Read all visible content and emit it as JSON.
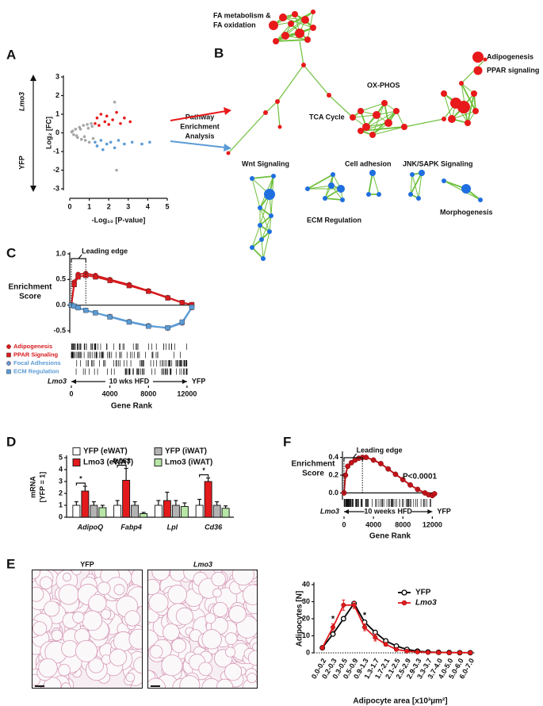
{
  "panels": {
    "letters": [
      "A",
      "B",
      "C",
      "D",
      "E",
      "F"
    ]
  },
  "pathway": {
    "lines": [
      "Pathway",
      "Enrichment",
      "Analysis"
    ]
  },
  "network": {
    "labels": [
      "FA metabolism &",
      "FA oxidation",
      "OX-PHOS",
      "TCA Cycle",
      "Wnt Signaling",
      "Cell adhesion",
      "JNK/SAPK Signaling",
      "ECM Regulation",
      "Morphogenesis"
    ],
    "legend": [
      "Adipogenesis",
      "PPAR signaling"
    ]
  },
  "images": {
    "titles": [
      "YFP",
      "Lmo3"
    ]
  },
  "chart_data": [
    {
      "type": "scatter",
      "x_label": "-Log₁₀ [P-value]",
      "y_label": "Log₂ [FC]",
      "side_labels": [
        "Lmo3",
        "YFP"
      ],
      "xlim": [
        0,
        5
      ],
      "ylim": [
        -3,
        3
      ],
      "xticks": [
        0,
        1,
        2,
        3,
        4,
        5
      ],
      "yticks": [
        -3,
        -2,
        -1,
        0,
        1,
        2,
        3
      ],
      "series": [
        {
          "color": "#a6a6a6",
          "x": [
            0.1,
            0.2,
            0.3,
            0.4,
            0.5,
            0.6,
            0.7,
            0.8,
            0.9,
            1.0,
            1.1,
            1.2,
            0.15,
            0.35,
            0.55,
            0.75,
            0.95,
            1.15,
            2.3,
            2.4
          ],
          "values": [
            0.05,
            -0.1,
            0.2,
            -0.25,
            0.3,
            -0.35,
            0.4,
            -0.4,
            0.45,
            -0.5,
            0.5,
            -0.3,
            0.1,
            -0.15,
            0.2,
            -0.2,
            0.25,
            0.35,
            1.65,
            -2.0
          ]
        },
        {
          "color": "#e8191b",
          "x": [
            1.3,
            1.4,
            1.5,
            1.6,
            1.8,
            1.9,
            2.0,
            2.2,
            2.4,
            2.6,
            2.8,
            3.1
          ],
          "values": [
            0.5,
            0.8,
            0.4,
            1.0,
            0.6,
            0.9,
            0.45,
            0.7,
            1.1,
            0.5,
            0.8,
            0.6
          ]
        },
        {
          "color": "#5b9bd5",
          "x": [
            1.3,
            1.4,
            1.6,
            1.7,
            1.9,
            2.1,
            2.3,
            2.5,
            2.8,
            3.2,
            3.7,
            4.1
          ],
          "values": [
            -0.5,
            -0.7,
            -0.4,
            -0.9,
            -0.6,
            -0.5,
            -0.8,
            -0.4,
            -0.6,
            -0.5,
            -0.6,
            -0.5
          ]
        }
      ]
    },
    {
      "type": "line",
      "y_label": [
        "Enrichment",
        "Score"
      ],
      "x_label": "Gene Rank",
      "annotation": "Leading edge",
      "rank_labels": [
        "Lmo3",
        "10 wks HFD",
        "YFP"
      ],
      "xlim": [
        0,
        12500
      ],
      "ylim": [
        -0.5,
        1.0
      ],
      "xticks": [
        0,
        4000,
        8000,
        12000
      ],
      "yticks": [
        -0.5,
        {
          "value": 0,
          "label": "0.0"
        },
        0.5,
        {
          "value": 1,
          "label": "1.0"
        }
      ],
      "x": [
        0,
        300,
        700,
        1500,
        2500,
        4000,
        6000,
        8000,
        10000,
        11500,
        12500
      ],
      "series": [
        {
          "name": "Adipogenesis",
          "color": "#d7191c",
          "marker": "circle",
          "values": [
            0,
            0.45,
            0.6,
            0.62,
            0.58,
            0.5,
            0.4,
            0.28,
            0.15,
            0.05,
            0.01
          ]
        },
        {
          "name": "PPAR Signaling",
          "color": "#d7191c",
          "marker": "square",
          "values": [
            0,
            0.4,
            0.55,
            0.58,
            0.55,
            0.48,
            0.38,
            0.27,
            0.14,
            0.05,
            0.01
          ]
        },
        {
          "name": "Focal Adhesions",
          "color": "#5b9bd5",
          "marker": "circle",
          "values": [
            0,
            -0.02,
            -0.05,
            -0.1,
            -0.15,
            -0.22,
            -0.32,
            -0.4,
            -0.45,
            -0.35,
            -0.05
          ]
        },
        {
          "name": "ECM Regulation",
          "color": "#5b9bd5",
          "marker": "square",
          "values": [
            0,
            -0.02,
            -0.05,
            -0.1,
            -0.15,
            -0.23,
            -0.33,
            -0.41,
            -0.44,
            -0.33,
            -0.04
          ]
        }
      ]
    },
    {
      "type": "bar",
      "y_label": [
        "mRNA",
        "[YFP = 1]"
      ],
      "ylim": [
        0,
        5
      ],
      "yticks": [
        0,
        1,
        2,
        3,
        4,
        5
      ],
      "categories": [
        "AdipoQ",
        "Fabp4",
        "Lpl",
        "Cd36"
      ],
      "series": [
        {
          "name": "YFP (eWAT)",
          "color": "#ffffff",
          "values": [
            1,
            1,
            1,
            1
          ],
          "errors": [
            0.3,
            0.4,
            0.4,
            0.5
          ]
        },
        {
          "name": "Lmo3 (eWAT)",
          "color": "#e31a1c",
          "values": [
            2.2,
            3.1,
            1.4,
            3.0
          ],
          "errors": [
            0.4,
            1.0,
            0.7,
            0.3
          ]
        },
        {
          "name": "YFP (iWAT)",
          "color": "#b3b3b3",
          "values": [
            1,
            1,
            1,
            1
          ],
          "errors": [
            0.3,
            0.3,
            0.4,
            0.3
          ]
        },
        {
          "name": "Lmo3 (iWAT)",
          "color": "#b8e6a6",
          "values": [
            0.8,
            0.3,
            0.9,
            0.75
          ],
          "errors": [
            0.2,
            0.1,
            0.3,
            0.2
          ]
        }
      ],
      "annotations": [
        {
          "text": "*",
          "category": "AdipoQ"
        },
        {
          "text": "0.063",
          "category": "Fabp4"
        },
        {
          "text": "*",
          "category": "Cd36"
        }
      ]
    },
    {
      "type": "line",
      "y_label": [
        "Enrichment",
        "Score"
      ],
      "x_label": "Gene Rank",
      "annotation": "Leading edge",
      "p_value": "P<0.0001",
      "rank_labels": [
        "Lmo3",
        "10 weeks HFD",
        "YFP"
      ],
      "xlim": [
        0,
        12500
      ],
      "ylim": [
        -0.05,
        0.45
      ],
      "xticks": [
        0,
        4000,
        8000,
        12000
      ],
      "yticks": [
        {
          "value": 0,
          "label": "0.0"
        },
        0.2,
        0.4
      ],
      "x": [
        0,
        200,
        500,
        1000,
        1500,
        2000,
        2500,
        3000,
        4000,
        5000,
        6000,
        7000,
        8000,
        9000,
        10000,
        11000,
        11500,
        12000,
        12300
      ],
      "series": [
        {
          "color": "#c0141a",
          "marker": "circle",
          "values": [
            0,
            0.2,
            0.3,
            0.34,
            0.37,
            0.39,
            0.4,
            0.4,
            0.37,
            0.33,
            0.27,
            0.21,
            0.15,
            0.09,
            0.04,
            0.0,
            -0.02,
            -0.03,
            -0.01
          ]
        }
      ]
    },
    {
      "type": "line",
      "y_label": "Adipocytes [N]",
      "x_label": "Adipocyte area [x10³µm²]",
      "ylim": [
        0,
        40
      ],
      "yticks": [
        0,
        10,
        20,
        30,
        40
      ],
      "categories": [
        "0.0-0.2",
        "0.2-0.3",
        "0.3-0.5",
        "0.5-0.9",
        "0.9-1.3",
        "1.3-1.7",
        "1.7-2.1",
        "2.1-2.5",
        "2.5-2.9",
        "2.9-3.3",
        "3.3-3.7",
        "3.7-4.0",
        "4.0-5.0",
        "5.0-6.0",
        "6.0-7.0"
      ],
      "series": [
        {
          "name": "YFP",
          "color": "#000000",
          "marker": "open-circle",
          "values": [
            3,
            11,
            20,
            29,
            18,
            12,
            7,
            4,
            2,
            1,
            0.5,
            0.3,
            0.2,
            0.1,
            0.1
          ],
          "errors": [
            0.3,
            1,
            1,
            1,
            1,
            1,
            0.5,
            0.5,
            0.3,
            0.2,
            0.1,
            0.1,
            0.1,
            0.1,
            0.1
          ]
        },
        {
          "name": "Lmo3",
          "color": "#e31a1c",
          "marker": "circle",
          "values": [
            3,
            15,
            28,
            28,
            15,
            9,
            5,
            2,
            1,
            0.5,
            0.3,
            0.2,
            0.1,
            0.1,
            0.1
          ],
          "errors": [
            0.5,
            2,
            3,
            2,
            2,
            2,
            1,
            0.5,
            0.3,
            0.2,
            0.1,
            0.1,
            0.1,
            0.1,
            0.1
          ]
        }
      ],
      "annotations": [
        {
          "text": "*",
          "category": "0.2-0.3"
        },
        {
          "text": "*",
          "category": "0.9-1.3"
        }
      ]
    }
  ]
}
